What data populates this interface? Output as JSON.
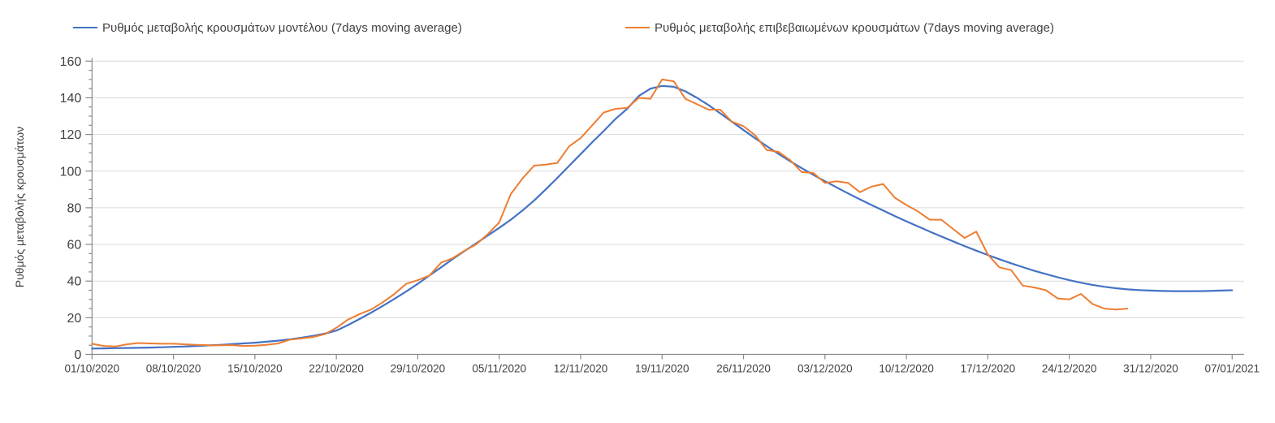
{
  "legend": {
    "items": [
      {
        "label": "Ρυθμός μεταβολής κρουσμάτων μοντέλου (7days moving average)",
        "color": "#4472c4"
      },
      {
        "label": "Ρυθμός μεταβολής επιβεβαιωμένων κρουσμάτων (7days moving average)",
        "color": "#ed7d31"
      }
    ]
  },
  "y_axis": {
    "title": "Ρυθμός μεταβολής κρουσμάτων",
    "tick_labels": [
      "0",
      "20",
      "40",
      "60",
      "80",
      "100",
      "120",
      "140",
      "160"
    ],
    "min": 0,
    "max": 160,
    "major_step": 20,
    "minor_step": 5
  },
  "x_axis": {
    "tick_labels": [
      "01/10/2020",
      "08/10/2020",
      "15/10/2020",
      "22/10/2020",
      "29/10/2020",
      "05/11/2020",
      "12/11/2020",
      "19/11/2020",
      "26/11/2020",
      "03/12/2020",
      "10/12/2020",
      "17/12/2020",
      "24/12/2020",
      "31/12/2020",
      "07/01/2021"
    ],
    "days_per_tick": 7
  },
  "chart_data": {
    "type": "line",
    "title": "",
    "xlabel": "",
    "ylabel": "Ρυθμός μεταβολής κρουσμάτων",
    "ylim": [
      0,
      160
    ],
    "x_categories_weekly": [
      "01/10/2020",
      "08/10/2020",
      "15/10/2020",
      "22/10/2020",
      "29/10/2020",
      "05/11/2020",
      "12/11/2020",
      "19/11/2020",
      "26/11/2020",
      "03/12/2020",
      "10/12/2020",
      "17/12/2020",
      "24/12/2020",
      "31/12/2020",
      "07/01/2021"
    ],
    "x_unit": "daily points, day 0 = 01/10/2020",
    "grid": "horizontal",
    "legend_position": "top",
    "series": [
      {
        "name": "Ρυθμός μεταβολής κρουσμάτων μοντέλου (7days moving average)",
        "color": "#4472c4",
        "start_day": 0,
        "values": [
          3.2,
          3.3,
          3.4,
          3.5,
          3.6,
          3.7,
          3.9,
          4.1,
          4.3,
          4.6,
          4.9,
          5.2,
          5.6,
          6.0,
          6.4,
          6.9,
          7.5,
          8.2,
          9.1,
          10.1,
          11.3,
          13.0,
          16.0,
          19.3,
          22.8,
          26.5,
          30.3,
          34.3,
          38.5,
          43.0,
          47.5,
          52.0,
          56.3,
          60.5,
          64.8,
          69.0,
          73.5,
          78.5,
          84.0,
          90.0,
          96.3,
          102.8,
          109.3,
          115.8,
          122.0,
          128.5,
          134.0,
          141.0,
          145.0,
          146.5,
          146.0,
          143.5,
          140.0,
          136.0,
          131.5,
          127.0,
          122.4,
          117.9,
          113.6,
          109.4,
          105.4,
          101.6,
          98.0,
          94.5,
          91.1,
          87.8,
          84.6,
          81.5,
          78.5,
          75.5,
          72.6,
          69.8,
          67.0,
          64.3,
          61.7,
          59.1,
          56.6,
          54.2,
          51.9,
          49.7,
          47.6,
          45.6,
          43.8,
          42.1,
          40.5,
          39.1,
          37.9,
          36.9,
          36.1,
          35.5,
          35.1,
          34.8,
          34.6,
          34.5,
          34.5,
          34.5,
          34.6,
          34.8,
          35.0
        ]
      },
      {
        "name": "Ρυθμός μεταβολής επιβεβαιωμένων κρουσμάτων (7days moving average)",
        "color": "#ed7d31",
        "start_day": 0,
        "values": [
          5.8,
          4.6,
          4.3,
          5.5,
          6.2,
          6.0,
          5.8,
          5.8,
          5.5,
          5.2,
          5.0,
          4.9,
          5.1,
          4.6,
          4.8,
          5.2,
          6.0,
          8.0,
          8.7,
          9.5,
          11.0,
          14.5,
          19.0,
          22.0,
          24.5,
          28.5,
          33.0,
          38.5,
          40.5,
          43.0,
          50.0,
          52.5,
          56.5,
          60.0,
          65.5,
          72.0,
          87.5,
          96.0,
          103.0,
          103.5,
          104.5,
          113.5,
          118.0,
          125.0,
          132.0,
          134.0,
          134.5,
          140.0,
          139.5,
          150.0,
          149.0,
          139.5,
          136.5,
          133.5,
          133.5,
          127.0,
          124.5,
          119.5,
          111.5,
          110.5,
          106.0,
          99.5,
          99.0,
          93.5,
          94.5,
          93.5,
          88.5,
          91.5,
          93.0,
          85.5,
          81.5,
          78.0,
          73.5,
          73.5,
          68.5,
          63.5,
          67.0,
          54.5,
          47.5,
          46.0,
          37.5,
          36.5,
          35.0,
          30.5,
          30.0,
          33.0,
          27.5,
          25.0,
          24.5,
          25.0
        ]
      }
    ]
  },
  "colors": {
    "gridline": "#d9d9d9",
    "axis": "#898989",
    "tick": "#898989",
    "label_text": "#404040"
  }
}
